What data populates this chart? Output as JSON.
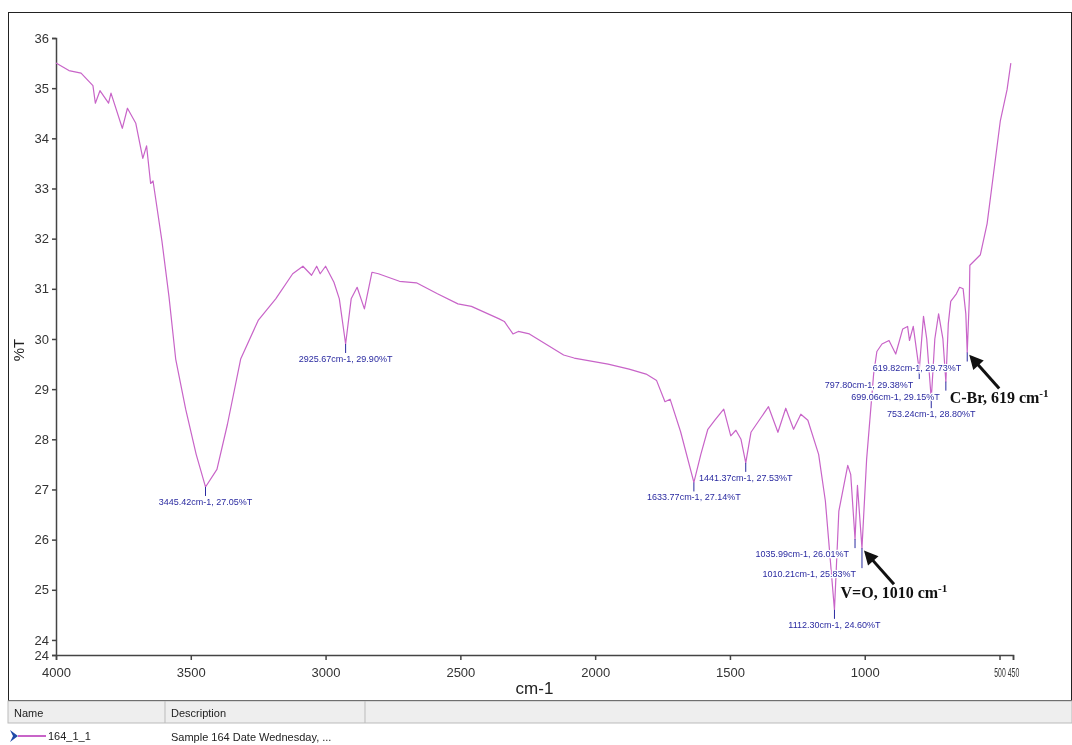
{
  "chart_data": {
    "type": "line",
    "xlabel": "cm-1",
    "ylabel": "%T",
    "legend_title": "Name",
    "legend": "bottom",
    "grid": false,
    "marker": "none",
    "line_style": "solid",
    "xlim": [
      4000,
      450
    ],
    "xticks": [
      4000,
      3500,
      3000,
      2500,
      2000,
      1500,
      1000,
      500,
      450
    ],
    "ylim": [
      23.7,
      36
    ],
    "yticks": [
      {
        "value": 23.7,
        "label": "24"
      },
      24,
      25,
      26,
      27,
      28,
      29,
      30,
      31,
      32,
      33,
      34,
      35,
      36
    ],
    "series": [
      {
        "name": "164_1_1",
        "color": "#c864c8",
        "x": [
          4000,
          3952,
          3907,
          3863,
          3854,
          3837,
          3805,
          3796,
          3754,
          3735,
          3704,
          3678,
          3664,
          3649,
          3640,
          3607,
          3581,
          3556,
          3519,
          3480,
          3445.42,
          3403,
          3364,
          3315,
          3250,
          3185,
          3122,
          3084,
          3052,
          3033,
          3020,
          3000,
          2969,
          2949,
          2925.67,
          2905,
          2883,
          2856,
          2828,
          2804,
          2726,
          2663,
          2585,
          2509,
          2459,
          2356,
          2337,
          2305,
          2285,
          2244,
          2117,
          2078,
          1952,
          1874,
          1811,
          1772,
          1741,
          1722,
          1683,
          1633.77,
          1608,
          1582,
          1556,
          1523,
          1497,
          1478,
          1459,
          1441.37,
          1422,
          1389,
          1357,
          1322,
          1293,
          1264,
          1237,
          1211,
          1171,
          1146,
          1112.3,
          1096,
          1063,
          1052,
          1035.99,
          1027,
          1010.21,
          993,
          967,
          955,
          936,
          910,
          885,
          859,
          841,
          834,
          820,
          797.8,
          782,
          770,
          753.24,
          740,
          726,
          710,
          699.06,
          690,
          681,
          660,
          648,
          635,
          625,
          619.82,
          612,
          610,
          571,
          546,
          497,
          472,
          458
        ],
        "values": [
          35.5,
          35.35,
          35.3,
          35.05,
          34.7,
          34.95,
          34.7,
          34.9,
          34.2,
          34.6,
          34.3,
          33.6,
          33.85,
          33.1,
          33.15,
          31.95,
          30.85,
          29.6,
          28.6,
          27.7,
          27.05,
          27.4,
          28.3,
          29.6,
          30.37,
          30.8,
          31.3,
          31.45,
          31.27,
          31.45,
          31.3,
          31.45,
          31.13,
          30.8,
          29.9,
          30.8,
          31.03,
          30.6,
          31.33,
          31.3,
          31.15,
          31.12,
          30.9,
          30.7,
          30.65,
          30.4,
          30.35,
          30.1,
          30.15,
          30.1,
          29.68,
          29.62,
          29.5,
          29.4,
          29.3,
          29.17,
          28.75,
          28.8,
          28.15,
          27.14,
          27.7,
          28.2,
          28.38,
          28.6,
          28.07,
          28.18,
          28,
          27.53,
          28.14,
          28.4,
          28.65,
          28.14,
          28.62,
          28.2,
          28.5,
          28.38,
          27.7,
          26.77,
          24.6,
          26.57,
          27.48,
          27.3,
          26.01,
          27.08,
          25.83,
          27.6,
          29.3,
          29.75,
          29.9,
          29.97,
          29.7,
          30.2,
          30.25,
          29.97,
          30.25,
          29.38,
          30.45,
          30,
          28.8,
          30,
          30.5,
          30,
          29.15,
          30.3,
          30.75,
          30.9,
          31.03,
          31,
          30.5,
          29.73,
          30.8,
          31.47,
          31.68,
          32.3,
          34.35,
          34.97,
          35.5
        ]
      }
    ],
    "annotations": [
      {
        "text": "3445.42cm-1, 27.05%T",
        "x": 3445.42,
        "y": 27.05
      },
      {
        "text": "2925.67cm-1, 29.90%T",
        "x": 2925.67,
        "y": 29.9
      },
      {
        "text": "1633.77cm-1, 27.14%T",
        "x": 1633.77,
        "y": 27.14
      },
      {
        "text": "1441.37cm-1, 27.53%T",
        "x": 1441.37,
        "y": 27.53
      },
      {
        "text": "1112.30cm-1, 24.60%T",
        "x": 1112.3,
        "y": 24.6
      },
      {
        "text": "1035.99cm-1, 26.01%T",
        "x": 1035.99,
        "y": 26.01
      },
      {
        "text": "1010.21cm-1, 25.83%T",
        "x": 1010.21,
        "y": 25.83
      },
      {
        "text": "797.80cm-1, 29.38%T",
        "x": 797.8,
        "y": 29.38
      },
      {
        "text": "753.24cm-1, 28.80%T",
        "x": 753.24,
        "y": 28.8
      },
      {
        "text": "699.06cm-1, 29.15%T",
        "x": 699.06,
        "y": 29.15
      },
      {
        "text": "619.82cm-1, 29.73%T",
        "x": 619.82,
        "y": 29.73
      },
      {
        "text": "V=O, 1010 cm$^{-1}$",
        "x": 1010.21,
        "y": 25.83
      },
      {
        "text": "C-Br, 619 cm$^{-1}$",
        "x": 619.82,
        "y": 29.73
      },
      "Description",
      "Sample 164 Date Wednesday, ..."
    ]
  }
}
